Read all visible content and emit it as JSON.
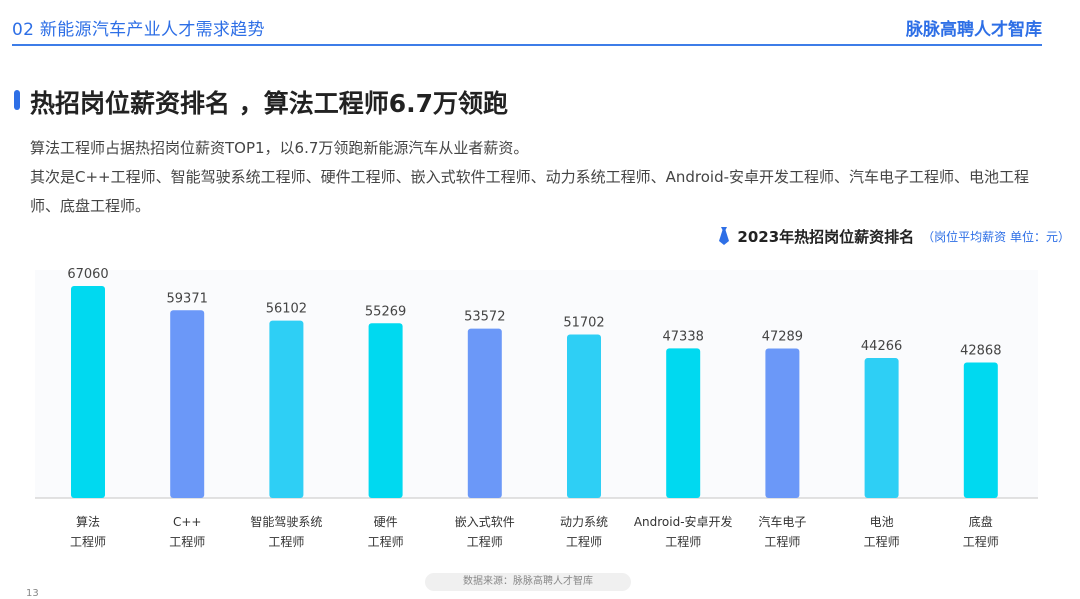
{
  "header": {
    "section": "02  新能源汽车产业人才需求趋势",
    "brand": "脉脉高聘人才智库"
  },
  "title": "热招岗位薪资排名 ，算法工程师6.7万领跑",
  "description": {
    "line1": "算法工程师占据热招岗位薪资TOP1，以6.7万领跑新能源汽车从业者薪资。",
    "line2": "其次是C++工程师、智能驾驶系统工程师、硬件工程师、嵌入式软件工程师、动力系统工程师、Android-安卓开发工程师、汽车电子工程师、电池工程师、底盘工程师。"
  },
  "chart_data": {
    "type": "bar",
    "title": "2023年热招岗位薪资排名",
    "subtitle": "（岗位平均薪资  单位：元）",
    "categories": [
      [
        "算法",
        "工程师"
      ],
      [
        "C++",
        "工程师"
      ],
      [
        "智能驾驶系统",
        "工程师"
      ],
      [
        "硬件",
        "工程师"
      ],
      [
        "嵌入式软件",
        "工程师"
      ],
      [
        "动力系统",
        "工程师"
      ],
      [
        "Android-安卓开发",
        "工程师"
      ],
      [
        "汽车电子",
        "工程师"
      ],
      [
        "电池",
        "工程师"
      ],
      [
        "底盘",
        "工程师"
      ]
    ],
    "values": [
      67060,
      59371,
      56102,
      55269,
      53572,
      51702,
      47338,
      47289,
      44266,
      42868
    ],
    "bar_colors": [
      "#00d9f0",
      "#6b98f8",
      "#2ecff5",
      "#00d9f0",
      "#6b98f8",
      "#2ecff5",
      "#00d9f0",
      "#6b98f8",
      "#2ecff5",
      "#00d9f0"
    ],
    "ylim": [
      0,
      70000
    ],
    "grid": false,
    "legend": "none"
  },
  "source": "数据来源：脉脉高聘人才智库",
  "page_number": "13",
  "colors": {
    "accent": "#2e6fe6",
    "background": "#ffffff"
  }
}
